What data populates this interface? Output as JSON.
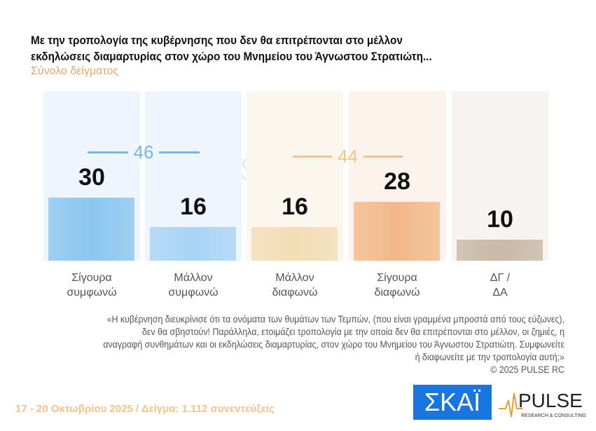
{
  "header": {
    "title_line1": "Με την τροπολογία της κυβέρνησης που δεν θα επιτρέπονται στο μέλλον",
    "title_line2": "εκδηλώσεις διαμαρτυρίας στον χώρο του Μνημείου του Άγνωστου Στρατιώτη...",
    "subtitle": "Σύνολο δείγματος"
  },
  "chart_data": {
    "type": "bar",
    "categories": [
      "Σίγουρα συμφωνώ",
      "Μάλλον συμφωνώ",
      "Μάλλον διαφωνώ",
      "Σίγουρα διαφωνώ",
      "ΔΓ / ΔΑ"
    ],
    "category_lines": [
      [
        "Σίγουρα",
        "συμφωνώ"
      ],
      [
        "Μάλλον",
        "συμφωνώ"
      ],
      [
        "Μάλλον",
        "διαφωνώ"
      ],
      [
        "Σίγουρα",
        "διαφωνώ"
      ],
      [
        "ΔΓ /",
        "ΔΑ"
      ]
    ],
    "values": [
      30,
      16,
      16,
      28,
      10
    ],
    "value_labels": [
      "30",
      "16",
      "16",
      "28",
      "10"
    ],
    "colors": [
      "#8cc6f0",
      "#a9d4f5",
      "#f2ddb5",
      "#f2b98a",
      "#c9b9a5"
    ],
    "groups": [
      {
        "label": "46",
        "value": 46,
        "color": "#7ab4e8"
      },
      {
        "label": "44",
        "value": 44,
        "color": "#f0c48a"
      }
    ],
    "ylim": [
      0,
      100
    ]
  },
  "note": {
    "text": "«Η κυβέρνηση διευκρίνισε ότι τα ονόματα των θυμάτων των Τεμπών, (που είναι γραμμένα μπροστά από τους εύζωνες), δεν θα σβηστούν! Παράλληλα, ετοιμάζει τροπολογία με την οποία δεν θα επιτρέπονται στο μέλλον, οι ζημιές, η αναγραφή συνθημάτων και οι εκδηλώσεις διαμαρτυρίας, στον χώρο του Μνημείου του Άγνωστου Στρατιώτη. Συμφωνείτε ή διαφωνείτε με την τροπολογία αυτή;»",
    "copyright": "© 2025 PULSE RC"
  },
  "footer": {
    "text": "17 - 20 Οκτωβρίου 2025  /  Δείγμα:  1.112 συνεντεύξεις"
  },
  "logos": {
    "skai": "ΣΚΑΪ",
    "pulse": "PULSE",
    "pulse_sub": "RESEARCH & CONSULTING"
  }
}
